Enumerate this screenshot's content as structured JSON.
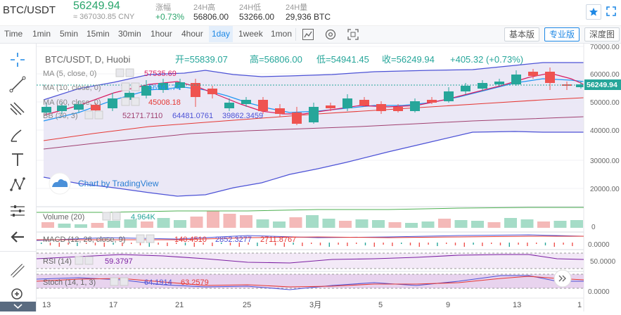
{
  "header": {
    "pair": "BTC/USDT",
    "price": "56249.94",
    "price_cny": "≈ 367030.85 CNY",
    "change_label": "涨幅",
    "change_value": "+0.73%",
    "high_label": "24H高",
    "high_value": "56806.00",
    "low_label": "24H低",
    "low_value": "53266.00",
    "vol_label": "24H量",
    "vol_value": "29,936 BTC"
  },
  "toolbar": {
    "timeframes": [
      "Time",
      "1min",
      "5min",
      "15min",
      "30min",
      "1hour",
      "4hour",
      "1day",
      "1week",
      "1mon"
    ],
    "active_timeframe": "1day",
    "view_basic": "基本版",
    "view_pro": "专业版",
    "view_depth": "深度图"
  },
  "legend": {
    "title": "BTC/USDT, D, Huobi",
    "open": "开=55839.07",
    "high": "高=56806.00",
    "low": "低=54941.45",
    "close": "收=56249.94",
    "change": "+405.32 (+0.73%)",
    "ma5_label": "MA (5, close, 0)",
    "ma5_value": "57535.69",
    "ma10_label": "MA (10, close, 0)",
    "ma10_value": "56941.74",
    "ma60_label": "MA (60, close, 0)",
    "ma60_value": "45008.18",
    "bb_label": "BB (30, 3)",
    "bb_mid": "52171.7110",
    "bb_upper": "64481.0761",
    "bb_lower": "39862.3459",
    "watermark": "Chart by TradingView"
  },
  "price_axis": {
    "ticks": [
      "70000.00",
      "60000.00",
      "50000.00",
      "40000.00",
      "30000.00",
      "20000.00"
    ],
    "current": "56249.94"
  },
  "volume": {
    "label": "Volume (20)",
    "value": "4.964K",
    "tick": "0"
  },
  "macd": {
    "label": "MACD (12, 26, close, 9)",
    "v1": "140.4510",
    "v2": "2852.3277",
    "v3": "2711.8767",
    "tick": "0.0000"
  },
  "rsi": {
    "label": "RSI (14)",
    "value": "59.3797",
    "tick": "50.0000"
  },
  "stoch": {
    "label": "Stoch (14, 1, 3)",
    "k": "64.1914",
    "d": "63.2579",
    "tick": "0.0000"
  },
  "time_axis": [
    "13",
    "17",
    "21",
    "25",
    "3月",
    "5",
    "9",
    "13",
    "1"
  ],
  "colors": {
    "up": "#26a69a",
    "down": "#ef5350",
    "price_green": "#2aa56c",
    "accent": "#1e88e5",
    "bb_fill": "#e9e6f5",
    "bb_line": "#4c52d6",
    "ma5": "#d81b60",
    "ma10": "#2196f3",
    "ma60": "#e53935"
  },
  "icons": [
    "star-icon",
    "expand-icon",
    "crosshair-icon",
    "trendline-icon",
    "fib-icon",
    "brush-icon",
    "text-icon",
    "pattern-icon",
    "measure-icon",
    "back-arrow-icon",
    "ruler-icon",
    "zoom-icon",
    "indicator-icon",
    "settings-icon",
    "fullscreen-icon",
    "eye-icon",
    "close-icon"
  ]
}
